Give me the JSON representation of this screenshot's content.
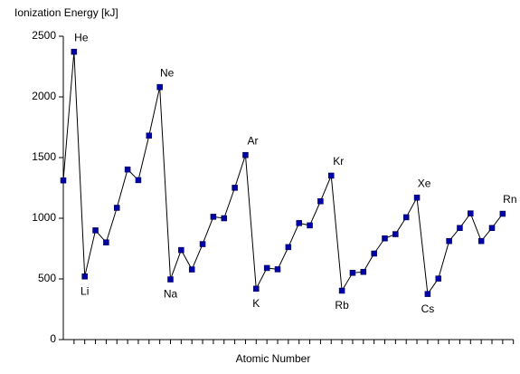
{
  "chart_data": {
    "type": "line",
    "ylabel": "Ionization Energy [kJ]",
    "xlabel": "Atomic Number",
    "categories": [
      null,
      "He",
      "Li",
      null,
      null,
      null,
      null,
      null,
      null,
      "Ne",
      "Na",
      null,
      null,
      null,
      null,
      null,
      null,
      "Ar",
      "K",
      null,
      null,
      null,
      null,
      null,
      null,
      "Kr",
      "Rb",
      null,
      null,
      null,
      null,
      null,
      null,
      "Xe",
      "Cs",
      null,
      null,
      null,
      null,
      null,
      null,
      "Rn"
    ],
    "values": [
      1312,
      2372,
      520,
      900,
      801,
      1086,
      1402,
      1314,
      1681,
      2081,
      496,
      738,
      578,
      787,
      1012,
      1000,
      1251,
      1521,
      419,
      590,
      579,
      762,
      960,
      941,
      1140,
      1351,
      403,
      550,
      558,
      709,
      834,
      869,
      1008,
      1170,
      376,
      503,
      812,
      920,
      1040,
      812,
      920,
      1037
    ],
    "color": "#0000a8",
    "ylim": [
      0,
      2500
    ],
    "yticks": [
      0,
      500,
      1000,
      1500,
      2000,
      2500
    ]
  }
}
